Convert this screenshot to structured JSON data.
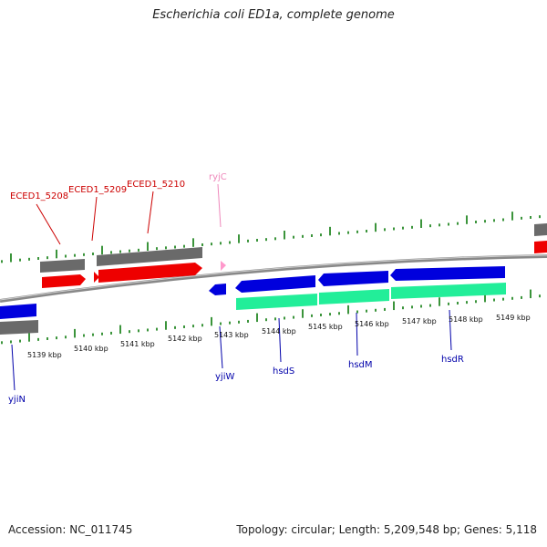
{
  "title": "Escherichia coli ED1a, complete genome",
  "footer": {
    "accession": "Accession: NC_011745",
    "summary": "Topology: circular; Length: 5,209,548 bp; Genes: 5,118"
  },
  "colors": {
    "cds_forward": "#ee0000",
    "cds_reverse": "#0000dd",
    "gene": "#6a6a6a",
    "rna": "#22ee99",
    "pseudo": "#ff99cc",
    "tick": "#0a7a0a",
    "backbone": "#888888",
    "label_red": "#cc0000",
    "label_blue": "#0000aa",
    "label_pink": "#ee88bb"
  },
  "scale_labels": [
    "5139 kbp",
    "5140 kbp",
    "5141 kbp",
    "5142 kbp",
    "5143 kbp",
    "5144 kbp",
    "5145 kbp",
    "5146 kbp",
    "5147 kbp",
    "5148 kbp",
    "5149 kbp"
  ],
  "gene_labels": [
    {
      "name": "ECED1_5208",
      "kind": "red"
    },
    {
      "name": "ECED1_5209",
      "kind": "red"
    },
    {
      "name": "ECED1_5210",
      "kind": "red"
    },
    {
      "name": "ryjC",
      "kind": "pink"
    },
    {
      "name": "yjiN",
      "kind": "blue"
    },
    {
      "name": "yjiW",
      "kind": "blue"
    },
    {
      "name": "hsdS",
      "kind": "blue"
    },
    {
      "name": "hsdM",
      "kind": "blue"
    },
    {
      "name": "hsdR",
      "kind": "blue"
    }
  ]
}
